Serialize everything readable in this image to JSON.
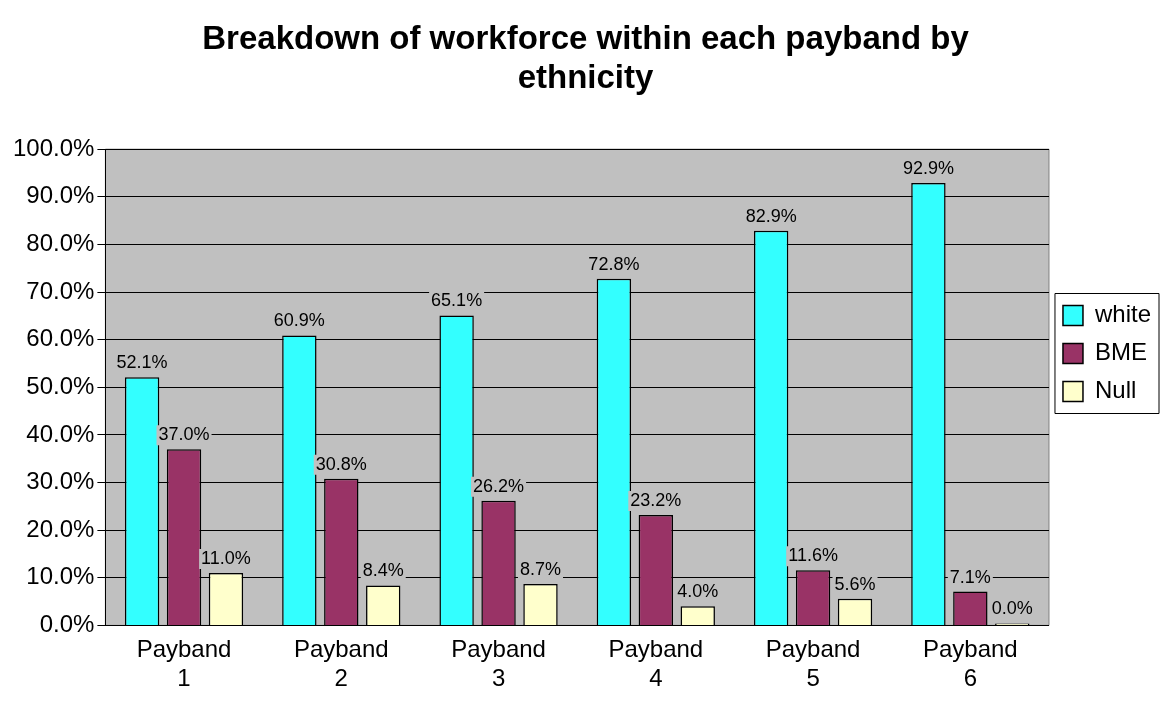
{
  "chart_data": {
    "type": "bar",
    "title": "Breakdown of workforce within each payband by ethnicity",
    "categories": [
      "Payband 1",
      "Payband 2",
      "Payband 3",
      "Payband 4",
      "Payband 5",
      "Payband 6"
    ],
    "series": [
      {
        "name": "white",
        "color": "#33ffff",
        "values": [
          52.1,
          60.9,
          65.1,
          72.8,
          82.9,
          92.9
        ],
        "value_labels": [
          "52.1%",
          "60.9%",
          "65.1%",
          "72.8%",
          "82.9%",
          "92.9%"
        ]
      },
      {
        "name": "BME",
        "color": "#993366",
        "values": [
          37.0,
          30.8,
          26.2,
          23.2,
          11.6,
          7.1
        ],
        "value_labels": [
          "37.0%",
          "30.8%",
          "26.2%",
          "23.2%",
          "11.6%",
          "7.1%"
        ]
      },
      {
        "name": "Null",
        "color": "#ffffcc",
        "values": [
          11.0,
          8.4,
          8.7,
          4.0,
          5.6,
          0.0
        ],
        "value_labels": [
          "11.0%",
          "8.4%",
          "8.7%",
          "4.0%",
          "5.6%",
          "0.0%"
        ]
      }
    ],
    "ylim": [
      0,
      100
    ],
    "yticks": [
      {
        "value": 0,
        "label": "0.0%"
      },
      {
        "value": 10,
        "label": "10.0%"
      },
      {
        "value": 20,
        "label": "20.0%"
      },
      {
        "value": 30,
        "label": "30.0%"
      },
      {
        "value": 40,
        "label": "40.0%"
      },
      {
        "value": 50,
        "label": "50.0%"
      },
      {
        "value": 60,
        "label": "60.0%"
      },
      {
        "value": 70,
        "label": "70.0%"
      },
      {
        "value": 80,
        "label": "80.0%"
      },
      {
        "value": 90,
        "label": "90.0%"
      },
      {
        "value": 100,
        "label": "100.0%"
      }
    ],
    "grid": "y",
    "legend": "right"
  }
}
